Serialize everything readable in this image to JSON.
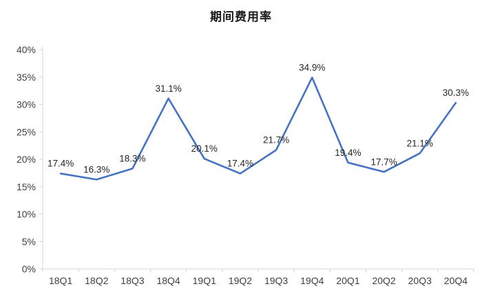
{
  "page": {
    "title": "期间费用率"
  },
  "chart_data": {
    "type": "line",
    "title": "期间费用率",
    "categories": [
      "18Q1",
      "18Q2",
      "18Q3",
      "18Q4",
      "19Q1",
      "19Q2",
      "19Q3",
      "19Q4",
      "20Q1",
      "20Q2",
      "20Q3",
      "20Q4"
    ],
    "values": [
      17.4,
      16.3,
      18.3,
      31.1,
      20.1,
      17.4,
      21.7,
      34.9,
      19.4,
      17.7,
      21.1,
      30.3
    ],
    "data_labels": [
      "17.4%",
      "16.3%",
      "18.3%",
      "31.1%",
      "20.1%",
      "17.4%",
      "21.7%",
      "34.9%",
      "19.4%",
      "17.7%",
      "21.1%",
      "30.3%"
    ],
    "ylim": [
      0,
      40
    ],
    "ytick_step": 5,
    "ytick_labels": [
      "0%",
      "5%",
      "10%",
      "15%",
      "20%",
      "25%",
      "30%",
      "35%",
      "40%"
    ],
    "xlabel": "",
    "ylabel": "",
    "grid": false,
    "legend_position": "none",
    "colors": {
      "line": "#4472C4",
      "axis": "#d6d6d6",
      "tick_label": "#404040",
      "data_label": "#262626",
      "title": "#1a1a1a"
    }
  }
}
